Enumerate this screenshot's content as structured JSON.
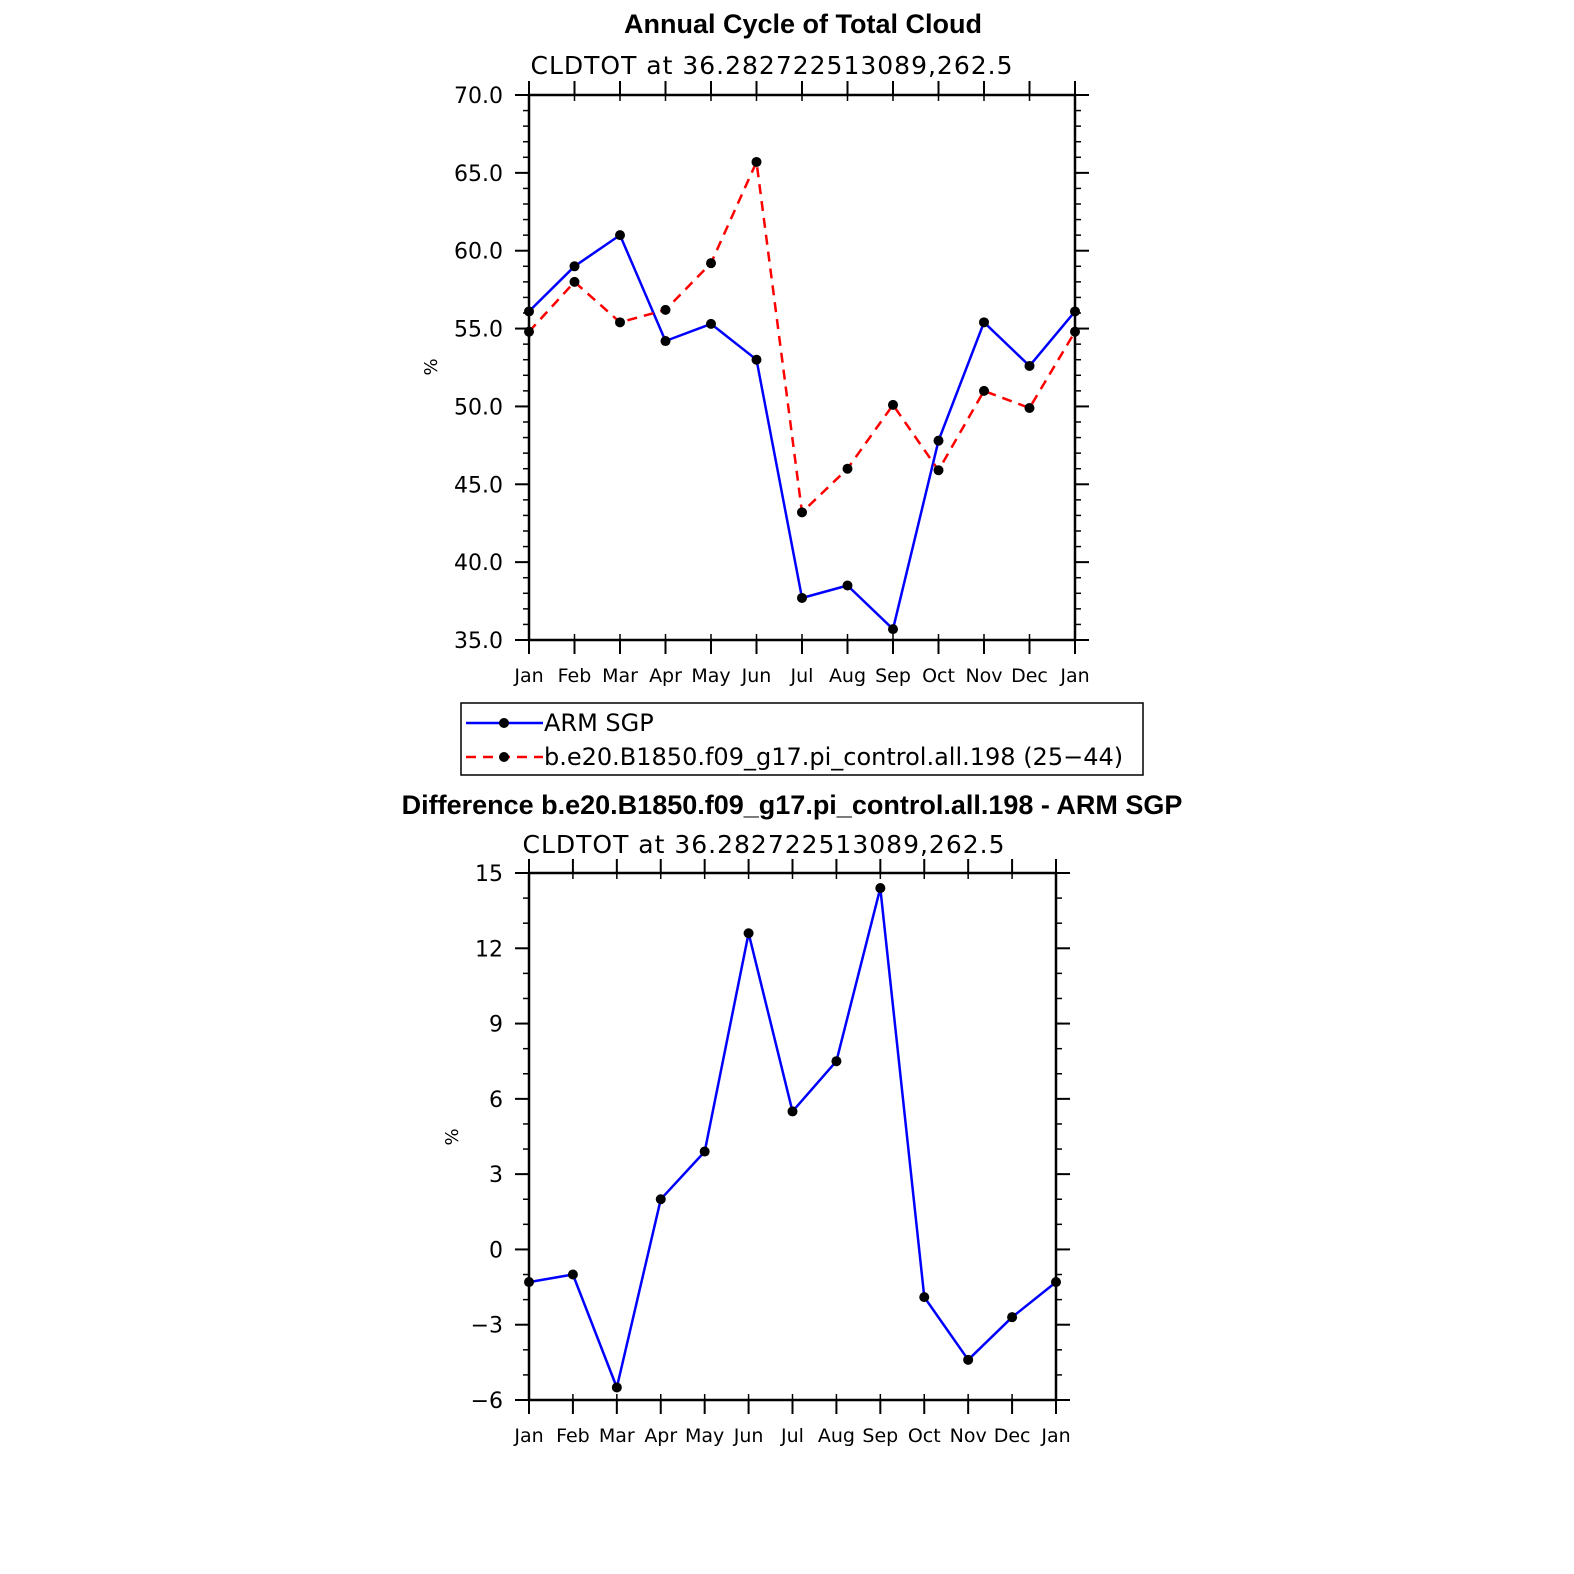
{
  "chart_data": [
    {
      "type": "line",
      "title": "Annual Cycle of Total Cloud",
      "subtitle": "CLDTOT  at  36.282722513089,262.5",
      "ylabel": "%",
      "xlabel": "",
      "categories": [
        "Jan",
        "Feb",
        "Mar",
        "Apr",
        "May",
        "Jun",
        "Jul",
        "Aug",
        "Sep",
        "Oct",
        "Nov",
        "Dec",
        "Jan"
      ],
      "ylim": [
        35.0,
        70.0
      ],
      "yticks": [
        "35.0",
        "40.0",
        "45.0",
        "50.0",
        "55.0",
        "60.0",
        "65.0",
        "70.0"
      ],
      "ytick_values": [
        35,
        40,
        45,
        50,
        55,
        60,
        65,
        70
      ],
      "minor_y_step": 1,
      "series": [
        {
          "name": "ARM SGP",
          "color": "#0000ff",
          "dash": "solid",
          "values": [
            56.1,
            59.0,
            61.0,
            54.2,
            55.3,
            53.0,
            37.7,
            38.5,
            35.7,
            47.8,
            55.4,
            52.6,
            56.1
          ]
        },
        {
          "name": "b.e20.B1850.f09_g17.pi_control.all.198 (25−44)",
          "color": "#ff0000",
          "dash": "dashed",
          "values": [
            54.8,
            58.0,
            55.4,
            56.2,
            59.2,
            65.7,
            43.2,
            46.0,
            50.1,
            45.9,
            51.0,
            49.9,
            54.8
          ]
        }
      ],
      "legend": "below"
    },
    {
      "type": "line",
      "title": "Difference b.e20.B1850.f09_g17.pi_control.all.198 - ARM SGP",
      "subtitle": "CLDTOT  at  36.282722513089,262.5",
      "ylabel": "%",
      "xlabel": "",
      "categories": [
        "Jan",
        "Feb",
        "Mar",
        "Apr",
        "May",
        "Jun",
        "Jul",
        "Aug",
        "Sep",
        "Oct",
        "Nov",
        "Dec",
        "Jan"
      ],
      "ylim": [
        -6,
        15
      ],
      "yticks": [
        "−6",
        "−3",
        "0",
        "3",
        "6",
        "9",
        "12",
        "15"
      ],
      "ytick_values": [
        -6,
        -3,
        0,
        3,
        6,
        9,
        12,
        15
      ],
      "minor_y_step": 1,
      "series": [
        {
          "name": "Difference",
          "color": "#0000ff",
          "dash": "solid",
          "values": [
            -1.3,
            -1.0,
            -5.5,
            2.0,
            3.9,
            12.6,
            5.5,
            7.5,
            14.4,
            -1.9,
            -4.4,
            -2.7,
            -1.3
          ]
        }
      ]
    }
  ]
}
